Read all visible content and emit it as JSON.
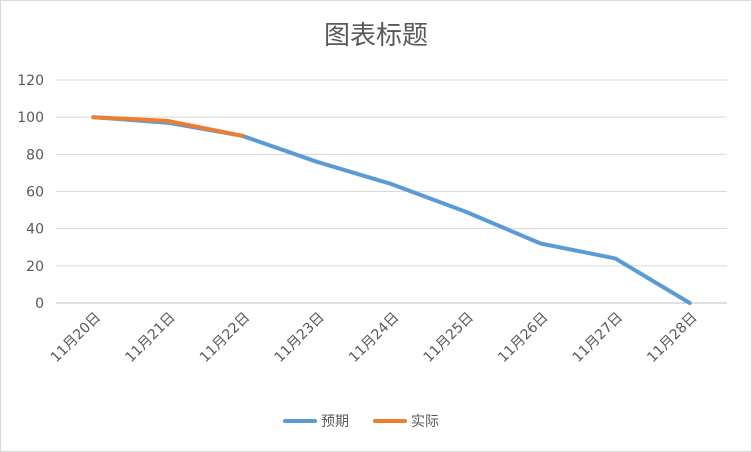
{
  "chart_data": {
    "type": "line",
    "title": "图表标题",
    "xlabel": "",
    "ylabel": "",
    "categories": [
      "11月20日",
      "11月21日",
      "11月22日",
      "11月23日",
      "11月24日",
      "11月25日",
      "11月26日",
      "11月27日",
      "11月28日"
    ],
    "ylim": [
      0,
      120
    ],
    "yticks": [
      0,
      20,
      40,
      60,
      80,
      100,
      120
    ],
    "grid": true,
    "legend_position": "bottom",
    "series": [
      {
        "name": "预期",
        "color": "#5b9bd5",
        "values": [
          100,
          97,
          90,
          76,
          64,
          49,
          32,
          24,
          0
        ]
      },
      {
        "name": "实际",
        "color": "#ed7d31",
        "values": [
          100,
          98,
          90,
          null,
          null,
          null,
          null,
          null,
          null
        ]
      }
    ]
  }
}
